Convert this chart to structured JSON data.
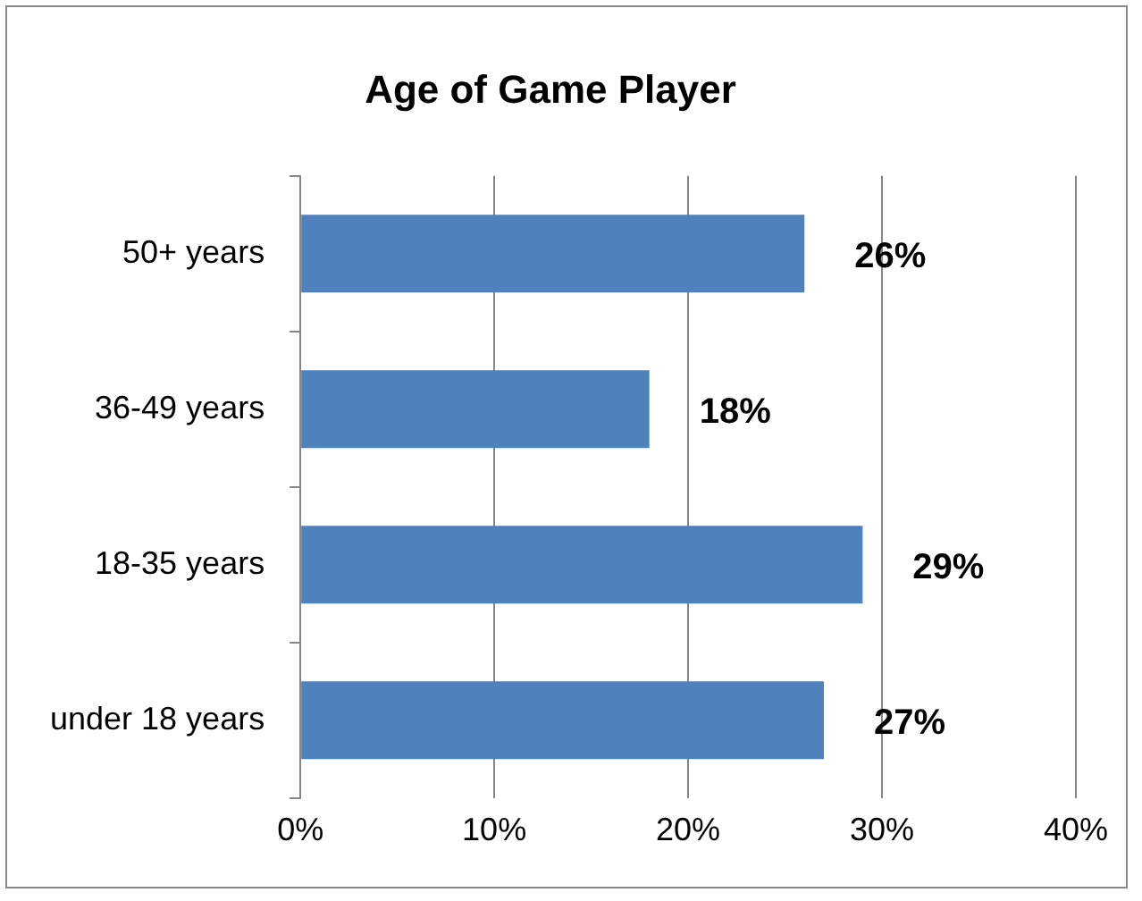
{
  "chart_data": {
    "type": "bar",
    "orientation": "horizontal",
    "title": "Age of Game Player",
    "categories": [
      "50+ years",
      "36-49 years",
      "18-35 years",
      "under 18 years"
    ],
    "values": [
      26,
      18,
      29,
      27
    ],
    "value_labels": [
      "26%",
      "18%",
      "29%",
      "27%"
    ],
    "color": "#4f81bd",
    "xlim": [
      0,
      40
    ],
    "xticks": [
      {
        "value": 0,
        "label": "0%"
      },
      {
        "value": 10,
        "label": "10%"
      },
      {
        "value": 20,
        "label": "20%"
      },
      {
        "value": 30,
        "label": "30%"
      },
      {
        "value": 40,
        "label": "40%"
      }
    ],
    "grid": "x",
    "legend": false
  }
}
